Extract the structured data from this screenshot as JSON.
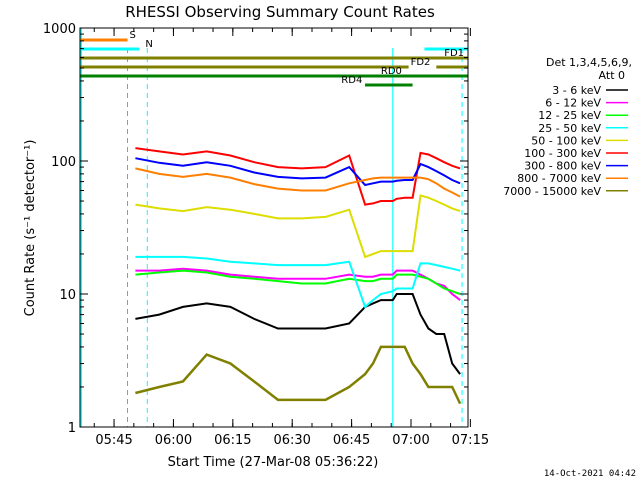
{
  "chart_data": {
    "type": "line",
    "title": "RHESSI Observing Summary Count Rates",
    "xlabel": "Start Time (27-Mar-08 05:36:22)",
    "ylabel": "Count Rate (s⁻¹ detector⁻¹)",
    "y_scale": "log",
    "ylim": [
      1,
      1000
    ],
    "y_ticks": [
      {
        "value": 1,
        "label": "1"
      },
      {
        "value": 10,
        "label": "10"
      },
      {
        "value": 100,
        "label": "100"
      },
      {
        "value": 1000,
        "label": "1000"
      }
    ],
    "x_range_min": [
      0,
      98
    ],
    "x_ticks": [
      {
        "value": 8.6,
        "label": "05:45"
      },
      {
        "value": 23.6,
        "label": "06:00"
      },
      {
        "value": 38.6,
        "label": "06:15"
      },
      {
        "value": 53.6,
        "label": "06:30"
      },
      {
        "value": 68.6,
        "label": "06:45"
      },
      {
        "value": 83.6,
        "label": "07:00"
      },
      {
        "value": 98.6,
        "label": "07:15"
      }
    ],
    "legend_header": [
      "Det 1,3,4,5,6,9,",
      "Att 0"
    ],
    "x_min": [
      14,
      20,
      26,
      32,
      38,
      44,
      50,
      56,
      62,
      68,
      72,
      74,
      76,
      79,
      80,
      82,
      84,
      86,
      88,
      90,
      92,
      94,
      96
    ],
    "series": [
      {
        "name": "3 - 6 keV",
        "color": "#000000",
        "values": [
          6.5,
          7,
          8,
          8.5,
          8,
          6.5,
          5.5,
          5.5,
          5.5,
          6,
          8,
          8.5,
          9,
          9,
          10,
          10,
          10,
          7,
          5.5,
          5,
          5,
          3,
          2.5
        ]
      },
      {
        "name": "6 - 12 keV",
        "color": "#ff00ff",
        "values": [
          15,
          15,
          15.5,
          15,
          14,
          13.5,
          13,
          13,
          13,
          14,
          13.5,
          13.5,
          14,
          14,
          15,
          15,
          15,
          14,
          13,
          12,
          11.5,
          10,
          9
        ]
      },
      {
        "name": "12 - 25 keV",
        "color": "#00ff00",
        "values": [
          14,
          14.5,
          15,
          14.5,
          13.5,
          13,
          12.5,
          12,
          12,
          13,
          12.5,
          12.5,
          13,
          13,
          14,
          14,
          14,
          13.5,
          13,
          12,
          11,
          10.5,
          10
        ]
      },
      {
        "name": "25 - 50 keV",
        "color": "#00ffff",
        "values": [
          19,
          19,
          19,
          18.5,
          17.5,
          17,
          16.5,
          16.5,
          16.5,
          17.5,
          8,
          9,
          10,
          10.5,
          11,
          11,
          11,
          17,
          17,
          16.5,
          16,
          15.5,
          15
        ]
      },
      {
        "name": "50 - 100 keV",
        "color": "#dddd00",
        "values": [
          47,
          44,
          42,
          45,
          43,
          40,
          37,
          37,
          38,
          43,
          19,
          20,
          21,
          21,
          21,
          21,
          21,
          55,
          53,
          50,
          47,
          44,
          42
        ]
      },
      {
        "name": "100 - 300 keV",
        "color": "#ff0000",
        "values": [
          125,
          118,
          112,
          118,
          110,
          98,
          90,
          88,
          90,
          110,
          47,
          48,
          50,
          50,
          52,
          53,
          53,
          115,
          112,
          105,
          98,
          92,
          88
        ]
      },
      {
        "name": "300 - 800 keV",
        "color": "#0000ff",
        "values": [
          105,
          97,
          92,
          98,
          92,
          82,
          76,
          74,
          75,
          90,
          66,
          68,
          70,
          70,
          71,
          72,
          72,
          95,
          90,
          84,
          78,
          72,
          68
        ]
      },
      {
        "name": "800 - 7000 keV",
        "color": "#ff7f00",
        "values": [
          88,
          80,
          76,
          80,
          75,
          67,
          62,
          60,
          60,
          68,
          72,
          74,
          75,
          75,
          75,
          75,
          75,
          75,
          73,
          68,
          62,
          58,
          54
        ]
      },
      {
        "name": "7000 - 15000 keV",
        "color": "#808000",
        "values": [
          1.8,
          2,
          2.2,
          3.5,
          3,
          2.2,
          1.6,
          1.6,
          1.6,
          2,
          2.5,
          3,
          4,
          4,
          4,
          4,
          3,
          2.5,
          2,
          2,
          2,
          2,
          1.5
        ]
      }
    ],
    "flag_bars": [
      {
        "name": "S",
        "color": "#ff7f00",
        "y": 0,
        "segments": [
          [
            0,
            12
          ]
        ],
        "label_at": 12.5
      },
      {
        "name": "N",
        "color": "#00ffff",
        "y": 1,
        "segments": [
          [
            0,
            15
          ],
          [
            87,
            98
          ]
        ],
        "label_at": 16.5
      },
      {
        "name": "FD1",
        "color": "#808000",
        "y": 2,
        "segments": [
          [
            0,
            98
          ]
        ],
        "label_at": 92
      },
      {
        "name": "FD2",
        "color": "#808000",
        "y": 3,
        "segments": [
          [
            0,
            83
          ],
          [
            90,
            98
          ]
        ],
        "label_at": 83.5
      },
      {
        "name": "RD0",
        "color": "#008000",
        "y": 4,
        "segments": [
          [
            0,
            98
          ]
        ],
        "label_at": 76
      },
      {
        "name": "RD4",
        "color": "#008000",
        "y": 5,
        "segments": [
          [
            72,
            84
          ]
        ],
        "label_at": 66
      }
    ],
    "vlines": [
      {
        "x": 12,
        "color": "#ff7f00"
      },
      {
        "x": 17,
        "color": "#00ffff"
      },
      {
        "x": 79,
        "color": "#00ffff"
      },
      {
        "x": 96.5,
        "color": "#00ffff"
      }
    ],
    "left_cyan_x": 0.3,
    "date_stamp": "14-Oct-2021 04:42"
  }
}
